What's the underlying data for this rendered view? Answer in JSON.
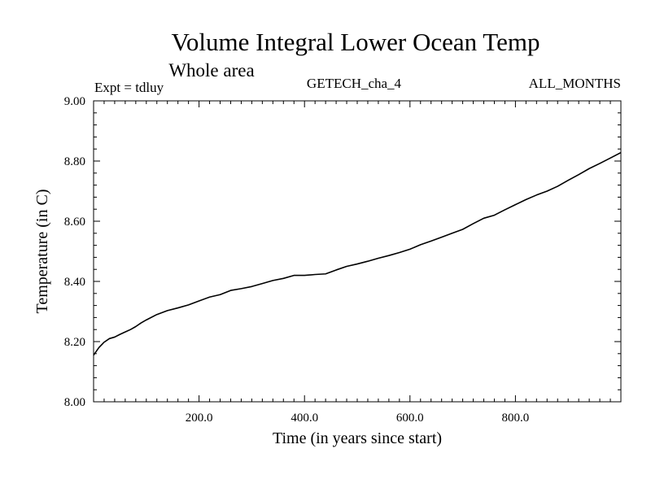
{
  "chart_data": {
    "type": "line",
    "title": "Volume Integral Lower Ocean Temp",
    "subtitle": "Whole area",
    "labels": {
      "left": "Expt = tdluy",
      "center": "GETECH_cha_4",
      "right": "ALL_MONTHS"
    },
    "xlabel": "Time (in years since start)",
    "ylabel": "Temperature (in C)",
    "xlim": [
      0,
      1000
    ],
    "ylim": [
      8.0,
      9.0
    ],
    "x_ticks": [
      {
        "value": 200,
        "label": "200.0"
      },
      {
        "value": 400,
        "label": "400.0"
      },
      {
        "value": 600,
        "label": "600.0"
      },
      {
        "value": 800,
        "label": "800.0"
      }
    ],
    "y_ticks": [
      {
        "value": 8.0,
        "label": "8.00"
      },
      {
        "value": 8.2,
        "label": "8.20"
      },
      {
        "value": 8.4,
        "label": "8.40"
      },
      {
        "value": 8.6,
        "label": "8.60"
      },
      {
        "value": 8.8,
        "label": "8.80"
      },
      {
        "value": 9.0,
        "label": "9.00"
      }
    ],
    "grid": false,
    "series": [
      {
        "color": "#000000",
        "x": [
          0,
          10,
          20,
          30,
          40,
          50,
          60,
          70,
          80,
          90,
          100,
          120,
          140,
          160,
          180,
          200,
          220,
          240,
          260,
          280,
          300,
          320,
          340,
          360,
          380,
          400,
          420,
          440,
          460,
          480,
          500,
          520,
          540,
          560,
          580,
          600,
          620,
          640,
          660,
          680,
          700,
          720,
          740,
          760,
          780,
          800,
          820,
          840,
          860,
          880,
          900,
          920,
          940,
          960,
          980,
          1000
        ],
        "y": [
          8.155,
          8.18,
          8.198,
          8.21,
          8.215,
          8.224,
          8.232,
          8.24,
          8.25,
          8.262,
          8.272,
          8.29,
          8.303,
          8.312,
          8.322,
          8.335,
          8.348,
          8.356,
          8.37,
          8.376,
          8.383,
          8.393,
          8.403,
          8.41,
          8.42,
          8.42,
          8.423,
          8.425,
          8.438,
          8.45,
          8.458,
          8.467,
          8.477,
          8.486,
          8.496,
          8.507,
          8.522,
          8.534,
          8.547,
          8.56,
          8.573,
          8.592,
          8.61,
          8.62,
          8.638,
          8.655,
          8.672,
          8.687,
          8.7,
          8.716,
          8.736,
          8.755,
          8.775,
          8.792,
          8.81,
          8.828
        ]
      }
    ]
  }
}
